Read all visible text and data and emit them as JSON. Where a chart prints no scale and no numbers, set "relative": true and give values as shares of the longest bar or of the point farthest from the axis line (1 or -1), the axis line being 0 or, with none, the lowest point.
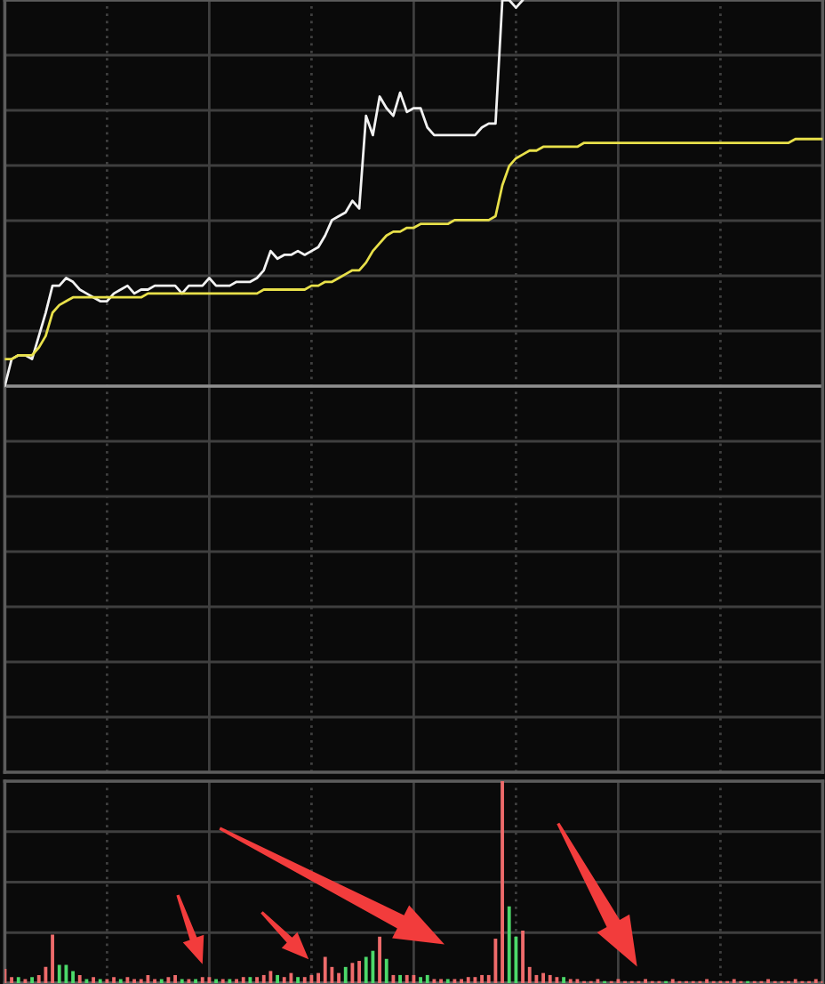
{
  "chart_data": [
    {
      "type": "line",
      "relative": true,
      "grid": true,
      "tick_labels": false,
      "categories": [
        null,
        null,
        null,
        null,
        null,
        null,
        null,
        null,
        null,
        null,
        null,
        null,
        null,
        null,
        null,
        null,
        null,
        null,
        null,
        null,
        null,
        null,
        null,
        null,
        null,
        null,
        null,
        null,
        null,
        null,
        null,
        null,
        null,
        null,
        null,
        null,
        null,
        null,
        null,
        null,
        null,
        null,
        null,
        null,
        null,
        null,
        null,
        null,
        null,
        null,
        null,
        null,
        null,
        null,
        null,
        null,
        null,
        null,
        null,
        null,
        null,
        null,
        null,
        null,
        null,
        null,
        null,
        null,
        null,
        null,
        null,
        null,
        null,
        null,
        null,
        null,
        null,
        null,
        null,
        null,
        null,
        null,
        null,
        null,
        null,
        null,
        null,
        null,
        null,
        null,
        null,
        null,
        null,
        null,
        null,
        null,
        null,
        null,
        null,
        null,
        null,
        null,
        null,
        null,
        null,
        null,
        null,
        null,
        null,
        null,
        null,
        null,
        null,
        null,
        null,
        null,
        null,
        null,
        null,
        null,
        null
      ],
      "series": [
        {
          "color": "#f2f2f2",
          "values": [
            0,
            0.07,
            0.08,
            0.08,
            0.07,
            0.13,
            0.19,
            0.26,
            0.26,
            0.28,
            0.27,
            0.25,
            0.24,
            0.23,
            0.22,
            0.22,
            0.24,
            0.25,
            0.26,
            0.24,
            0.25,
            0.25,
            0.26,
            0.26,
            0.26,
            0.26,
            0.24,
            0.26,
            0.26,
            0.26,
            0.28,
            0.26,
            0.26,
            0.26,
            0.27,
            0.27,
            0.27,
            0.28,
            0.3,
            0.35,
            0.33,
            0.34,
            0.34,
            0.35,
            0.34,
            0.35,
            0.36,
            0.39,
            0.43,
            0.44,
            0.45,
            0.48,
            0.46,
            0.7,
            0.65,
            0.75,
            0.72,
            0.7,
            0.76,
            0.71,
            0.72,
            0.72,
            0.67,
            0.65,
            0.65,
            0.65,
            0.65,
            0.65,
            0.65,
            0.65,
            0.67,
            0.68,
            0.68,
            1,
            1,
            0.98,
            1,
            null,
            null,
            null,
            null,
            null,
            null,
            null,
            null,
            null,
            null,
            null,
            null,
            null,
            null,
            null,
            null,
            null,
            null,
            null,
            null,
            null,
            null,
            null,
            null,
            null,
            null,
            null,
            null,
            null,
            null,
            null,
            null,
            null,
            null,
            null,
            null,
            null,
            null,
            null,
            null,
            null,
            null,
            null,
            null
          ]
        },
        {
          "color": "#e8e04a",
          "values": [
            0.07,
            0.07,
            0.08,
            0.08,
            0.08,
            0.1,
            0.13,
            0.19,
            0.21,
            0.22,
            0.23,
            0.23,
            0.23,
            0.23,
            0.23,
            0.23,
            0.23,
            0.23,
            0.23,
            0.23,
            0.23,
            0.24,
            0.24,
            0.24,
            0.24,
            0.24,
            0.24,
            0.24,
            0.24,
            0.24,
            0.24,
            0.24,
            0.24,
            0.24,
            0.24,
            0.24,
            0.24,
            0.24,
            0.25,
            0.25,
            0.25,
            0.25,
            0.25,
            0.25,
            0.25,
            0.26,
            0.26,
            0.27,
            0.27,
            0.28,
            0.29,
            0.3,
            0.3,
            0.32,
            0.35,
            0.37,
            0.39,
            0.4,
            0.4,
            0.41,
            0.41,
            0.42,
            0.42,
            0.42,
            0.42,
            0.42,
            0.43,
            0.43,
            0.43,
            0.43,
            0.43,
            0.43,
            0.44,
            0.52,
            0.57,
            0.59,
            0.6,
            0.61,
            0.61,
            0.62,
            0.62,
            0.62,
            0.62,
            0.62,
            0.62,
            0.63,
            0.63,
            0.63,
            0.63,
            0.63,
            0.63,
            0.63,
            0.63,
            0.63,
            0.63,
            0.63,
            0.63,
            0.63,
            0.63,
            0.63,
            0.63,
            0.63,
            0.63,
            0.63,
            0.63,
            0.63,
            0.63,
            0.63,
            0.63,
            0.63,
            0.63,
            0.63,
            0.63,
            0.63,
            0.63,
            0.63,
            0.64,
            0.64,
            0.64,
            0.64,
            0.64
          ]
        }
      ]
    },
    {
      "type": "bar",
      "relative": true,
      "grid": true,
      "tick_labels": false,
      "categories": [
        null,
        null,
        null,
        null,
        null,
        null,
        null,
        null,
        null,
        null,
        null,
        null,
        null,
        null,
        null,
        null,
        null,
        null,
        null,
        null,
        null,
        null,
        null,
        null,
        null,
        null,
        null,
        null,
        null,
        null,
        null,
        null,
        null,
        null,
        null,
        null,
        null,
        null,
        null,
        null,
        null,
        null,
        null,
        null,
        null,
        null,
        null,
        null,
        null,
        null,
        null,
        null,
        null,
        null,
        null,
        null,
        null,
        null,
        null,
        null,
        null,
        null,
        null,
        null,
        null,
        null,
        null,
        null,
        null,
        null,
        null,
        null,
        null,
        null,
        null,
        null,
        null,
        null,
        null,
        null,
        null,
        null,
        null,
        null,
        null,
        null,
        null,
        null,
        null,
        null,
        null,
        null,
        null,
        null,
        null,
        null,
        null,
        null,
        null,
        null,
        null,
        null,
        null,
        null,
        null,
        null,
        null,
        null,
        null,
        null,
        null,
        null,
        null,
        null,
        null,
        null,
        null,
        null,
        null,
        null,
        null
      ],
      "values": [
        0.07,
        0.03,
        0.03,
        0.02,
        0.03,
        0.04,
        0.08,
        0.24,
        0.09,
        0.09,
        0.06,
        0.04,
        0.02,
        0.03,
        0.02,
        0.02,
        0.03,
        0.02,
        0.03,
        0.02,
        0.02,
        0.04,
        0.02,
        0.02,
        0.03,
        0.04,
        0.02,
        0.02,
        0.02,
        0.03,
        0.03,
        0.02,
        0.02,
        0.02,
        0.02,
        0.03,
        0.03,
        0.03,
        0.04,
        0.06,
        0.04,
        0.03,
        0.05,
        0.03,
        0.03,
        0.04,
        0.05,
        0.13,
        0.08,
        0.05,
        0.08,
        0.1,
        0.11,
        0.13,
        0.16,
        0.23,
        0.12,
        0.04,
        0.04,
        0.04,
        0.04,
        0.03,
        0.04,
        0.02,
        0.02,
        0.02,
        0.02,
        0.02,
        0.03,
        0.03,
        0.04,
        0.04,
        0.22,
        1,
        0.38,
        0.23,
        0.26,
        0.08,
        0.04,
        0.05,
        0.04,
        0.03,
        0.03,
        0.02,
        0.02,
        0.01,
        0.01,
        0.02,
        0.01,
        0.01,
        0.02,
        0.01,
        0.01,
        0.01,
        0.02,
        0.01,
        0.01,
        0.01,
        0.02,
        0.01,
        0.01,
        0.01,
        0.01,
        0.02,
        0.01,
        0.01,
        0.01,
        0.02,
        0.01,
        0.01,
        0.01,
        0.01,
        0.02,
        0.01,
        0.01,
        0.01,
        0.02,
        0.01,
        0.01,
        0.02,
        0.01
      ],
      "colors": [
        "#ee6b6b",
        "#ee6b6b",
        "#4cd96a",
        "#ee6b6b",
        "#4cd96a",
        "#ee6b6b",
        "#ee6b6b",
        "#ee6b6b",
        "#4cd96a",
        "#4cd96a",
        "#4cd96a",
        "#ee6b6b",
        "#4cd96a",
        "#ee6b6b",
        "#4cd96a",
        "#ee6b6b",
        "#ee6b6b",
        "#4cd96a",
        "#ee6b6b",
        "#ee6b6b",
        "#ee6b6b",
        "#ee6b6b",
        "#ee6b6b",
        "#4cd96a",
        "#ee6b6b",
        "#ee6b6b",
        "#4cd96a",
        "#ee6b6b",
        "#4cd96a",
        "#ee6b6b",
        "#ee6b6b",
        "#4cd96a",
        "#ee6b6b",
        "#4cd96a",
        "#ee6b6b",
        "#ee6b6b",
        "#4cd96a",
        "#ee6b6b",
        "#ee6b6b",
        "#ee6b6b",
        "#4cd96a",
        "#ee6b6b",
        "#ee6b6b",
        "#4cd96a",
        "#ee6b6b",
        "#ee6b6b",
        "#ee6b6b",
        "#ee6b6b",
        "#ee6b6b",
        "#ee6b6b",
        "#4cd96a",
        "#ee6b6b",
        "#ee6b6b",
        "#4cd96a",
        "#4cd96a",
        "#ee6b6b",
        "#4cd96a",
        "#ee6b6b",
        "#4cd96a",
        "#ee6b6b",
        "#ee6b6b",
        "#4cd96a",
        "#4cd96a",
        "#ee6b6b",
        "#ee6b6b",
        "#4cd96a",
        "#ee6b6b",
        "#ee6b6b",
        "#ee6b6b",
        "#ee6b6b",
        "#ee6b6b",
        "#ee6b6b",
        "#ee6b6b",
        "#ee6b6b",
        "#4cd96a",
        "#4cd96a",
        "#ee6b6b",
        "#ee6b6b",
        "#ee6b6b",
        "#ee6b6b",
        "#ee6b6b",
        "#ee6b6b",
        "#4cd96a",
        "#ee6b6b",
        "#ee6b6b",
        "#ee6b6b",
        "#ee6b6b",
        "#ee6b6b",
        "#4cd96a",
        "#ee6b6b",
        "#ee6b6b",
        "#ee6b6b",
        "#ee6b6b",
        "#ee6b6b",
        "#ee6b6b",
        "#ee6b6b",
        "#ee6b6b",
        "#4cd96a",
        "#ee6b6b",
        "#ee6b6b",
        "#ee6b6b",
        "#ee6b6b",
        "#ee6b6b",
        "#ee6b6b",
        "#ee6b6b",
        "#ee6b6b",
        "#ee6b6b",
        "#ee6b6b",
        "#ee6b6b",
        "#4cd96a",
        "#ee6b6b",
        "#ee6b6b",
        "#ee6b6b",
        "#ee6b6b",
        "#ee6b6b",
        "#ee6b6b",
        "#ee6b6b",
        "#ee6b6b",
        "#ee6b6b",
        "#ee6b6b",
        "#ee6b6b"
      ]
    }
  ]
}
